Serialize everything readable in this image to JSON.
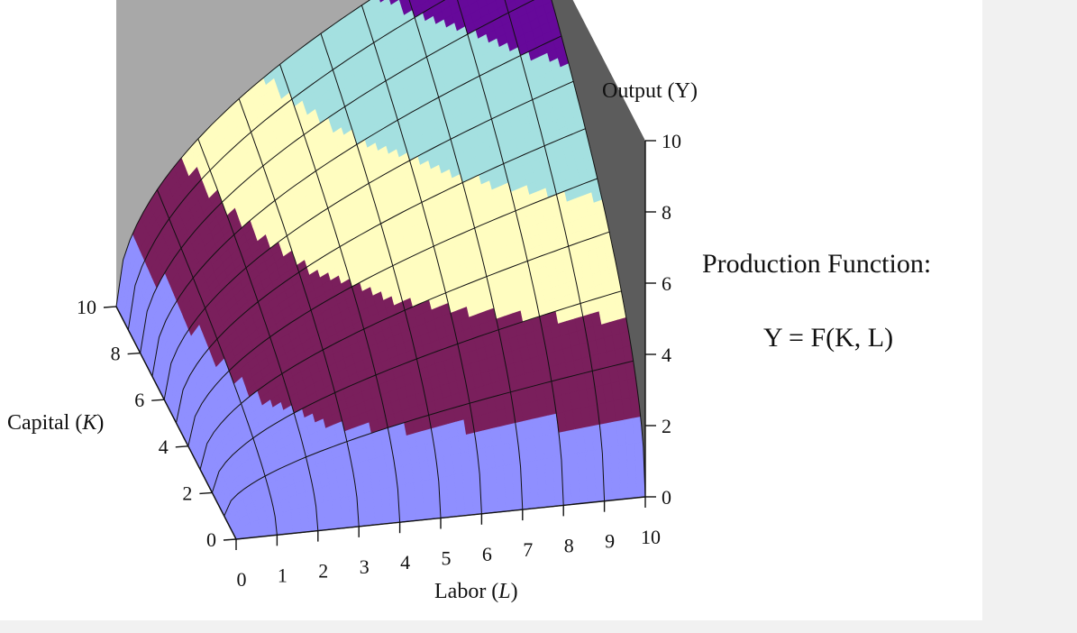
{
  "caption": {
    "title": "Production Function:",
    "formula": "Y = F(K, L)"
  },
  "chart_data": {
    "type": "surface",
    "z_function": "Y = F(K, L)",
    "x_axis": {
      "label": "Labor (L)",
      "label_text": "Labor (",
      "label_var": "L",
      "label_end": ")",
      "range": [
        0,
        10
      ],
      "ticks": [
        0,
        1,
        2,
        3,
        4,
        5,
        6,
        7,
        8,
        9,
        10
      ]
    },
    "y_axis": {
      "label": "Capital (K)",
      "label_text": "Capital (",
      "label_var": "K",
      "label_end": ")",
      "range": [
        0,
        10
      ],
      "ticks": [
        0,
        2,
        4,
        6,
        8,
        10
      ]
    },
    "z_axis": {
      "label": "Output (Y)",
      "range": [
        0,
        10
      ],
      "ticks": [
        0,
        2,
        4,
        6,
        8,
        10
      ]
    },
    "bands": [
      {
        "range": [
          0,
          2
        ],
        "color": "#8f8fff"
      },
      {
        "range": [
          2,
          4
        ],
        "color": "#7a1f5c"
      },
      {
        "range": [
          4,
          6
        ],
        "color": "#fffdc0"
      },
      {
        "range": [
          6,
          8
        ],
        "color": "#a4e0e0"
      },
      {
        "range": [
          8,
          10
        ],
        "color": "#66099a"
      }
    ],
    "colors": {
      "back_wall": "#a8a8a8",
      "side_wall": "#5c5c5c",
      "grid": "#111111"
    },
    "grid_step": 1
  }
}
